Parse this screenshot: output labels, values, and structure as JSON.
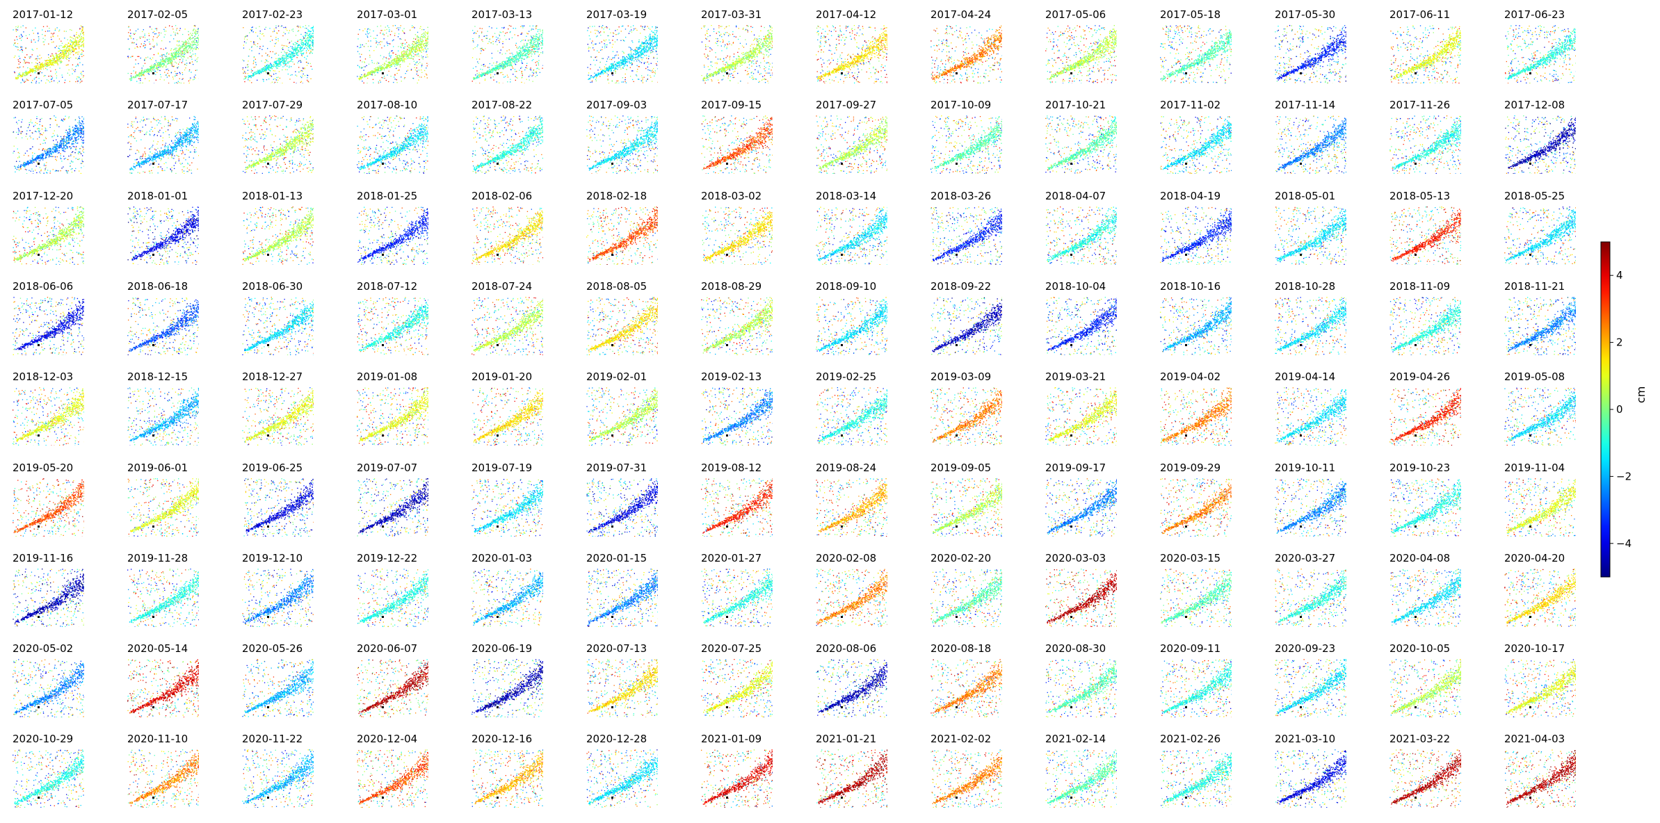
{
  "chart_data": {
    "type": "heatmap",
    "description_kind": "small-multiples",
    "layout": {
      "rows": 9,
      "cols": 14
    },
    "colormap": "jet",
    "colorbar": {
      "label": "cm",
      "vmin": -5,
      "vmax": 5,
      "ticks": [
        4,
        2,
        0,
        -2,
        -4
      ],
      "tick_labels": [
        "4",
        "2",
        "0",
        "−2",
        "−4"
      ]
    },
    "panels": [
      {
        "date": "2017-01-12",
        "main_value": 1.0
      },
      {
        "date": "2017-02-05",
        "main_value": 0.0
      },
      {
        "date": "2017-02-23",
        "main_value": -1.0
      },
      {
        "date": "2017-03-01",
        "main_value": 0.5
      },
      {
        "date": "2017-03-13",
        "main_value": -0.5
      },
      {
        "date": "2017-03-19",
        "main_value": -1.5
      },
      {
        "date": "2017-03-31",
        "main_value": 0.5
      },
      {
        "date": "2017-04-12",
        "main_value": 1.5
      },
      {
        "date": "2017-04-24",
        "main_value": 2.5
      },
      {
        "date": "2017-05-06",
        "main_value": 0.5
      },
      {
        "date": "2017-05-18",
        "main_value": -0.5
      },
      {
        "date": "2017-05-30",
        "main_value": -3.5
      },
      {
        "date": "2017-06-11",
        "main_value": 1.0
      },
      {
        "date": "2017-06-23",
        "main_value": -1.0
      },
      {
        "date": "2017-07-05",
        "main_value": -2.5
      },
      {
        "date": "2017-07-17",
        "main_value": -2.0
      },
      {
        "date": "2017-07-29",
        "main_value": 0.5
      },
      {
        "date": "2017-08-10",
        "main_value": -1.5
      },
      {
        "date": "2017-08-22",
        "main_value": -1.0
      },
      {
        "date": "2017-09-03",
        "main_value": -1.5
      },
      {
        "date": "2017-09-15",
        "main_value": 3.0
      },
      {
        "date": "2017-09-27",
        "main_value": 0.5
      },
      {
        "date": "2017-10-09",
        "main_value": -0.5
      },
      {
        "date": "2017-10-21",
        "main_value": -0.5
      },
      {
        "date": "2017-11-02",
        "main_value": -1.5
      },
      {
        "date": "2017-11-14",
        "main_value": -2.5
      },
      {
        "date": "2017-11-26",
        "main_value": -1.0
      },
      {
        "date": "2017-12-08",
        "main_value": -4.5
      },
      {
        "date": "2017-12-20",
        "main_value": 0.5
      },
      {
        "date": "2018-01-01",
        "main_value": -4.0
      },
      {
        "date": "2018-01-13",
        "main_value": 0.5
      },
      {
        "date": "2018-01-25",
        "main_value": -3.5
      },
      {
        "date": "2018-02-06",
        "main_value": 1.5
      },
      {
        "date": "2018-02-18",
        "main_value": 3.0
      },
      {
        "date": "2018-03-02",
        "main_value": 1.5
      },
      {
        "date": "2018-03-14",
        "main_value": -1.5
      },
      {
        "date": "2018-03-26",
        "main_value": -3.5
      },
      {
        "date": "2018-04-07",
        "main_value": -1.0
      },
      {
        "date": "2018-04-19",
        "main_value": -3.5
      },
      {
        "date": "2018-05-01",
        "main_value": -1.5
      },
      {
        "date": "2018-05-13",
        "main_value": 3.5
      },
      {
        "date": "2018-05-25",
        "main_value": -1.5
      },
      {
        "date": "2018-06-06",
        "main_value": -4.0
      },
      {
        "date": "2018-06-18",
        "main_value": -3.0
      },
      {
        "date": "2018-06-30",
        "main_value": -1.5
      },
      {
        "date": "2018-07-12",
        "main_value": -1.0
      },
      {
        "date": "2018-07-24",
        "main_value": 0.5
      },
      {
        "date": "2018-08-05",
        "main_value": 1.5
      },
      {
        "date": "2018-08-29",
        "main_value": 0.5
      },
      {
        "date": "2018-09-10",
        "main_value": -1.5
      },
      {
        "date": "2018-09-22",
        "main_value": -4.5
      },
      {
        "date": "2018-10-04",
        "main_value": -3.5
      },
      {
        "date": "2018-10-16",
        "main_value": -2.0
      },
      {
        "date": "2018-10-28",
        "main_value": -1.5
      },
      {
        "date": "2018-11-09",
        "main_value": -1.0
      },
      {
        "date": "2018-11-21",
        "main_value": -2.5
      },
      {
        "date": "2018-12-03",
        "main_value": 1.0
      },
      {
        "date": "2018-12-15",
        "main_value": -2.0
      },
      {
        "date": "2018-12-27",
        "main_value": 1.0
      },
      {
        "date": "2019-01-08",
        "main_value": 1.0
      },
      {
        "date": "2019-01-20",
        "main_value": 1.5
      },
      {
        "date": "2019-02-01",
        "main_value": 0.5
      },
      {
        "date": "2019-02-13",
        "main_value": -2.5
      },
      {
        "date": "2019-02-25",
        "main_value": -1.0
      },
      {
        "date": "2019-03-09",
        "main_value": 2.5
      },
      {
        "date": "2019-03-21",
        "main_value": 1.0
      },
      {
        "date": "2019-04-02",
        "main_value": 2.5
      },
      {
        "date": "2019-04-14",
        "main_value": -1.5
      },
      {
        "date": "2019-04-26",
        "main_value": 3.5
      },
      {
        "date": "2019-05-08",
        "main_value": -1.5
      },
      {
        "date": "2019-05-20",
        "main_value": 3.0
      },
      {
        "date": "2019-06-01",
        "main_value": 1.0
      },
      {
        "date": "2019-06-25",
        "main_value": -4.0
      },
      {
        "date": "2019-07-07",
        "main_value": -4.5
      },
      {
        "date": "2019-07-19",
        "main_value": -1.5
      },
      {
        "date": "2019-07-31",
        "main_value": -4.0
      },
      {
        "date": "2019-08-12",
        "main_value": 3.5
      },
      {
        "date": "2019-08-24",
        "main_value": 2.0
      },
      {
        "date": "2019-09-05",
        "main_value": 0.5
      },
      {
        "date": "2019-09-17",
        "main_value": -2.5
      },
      {
        "date": "2019-09-29",
        "main_value": 2.5
      },
      {
        "date": "2019-10-11",
        "main_value": -2.5
      },
      {
        "date": "2019-10-23",
        "main_value": -1.0
      },
      {
        "date": "2019-11-04",
        "main_value": 1.0
      },
      {
        "date": "2019-11-16",
        "main_value": -4.5
      },
      {
        "date": "2019-11-28",
        "main_value": -1.0
      },
      {
        "date": "2019-12-10",
        "main_value": -2.5
      },
      {
        "date": "2019-12-22",
        "main_value": -1.0
      },
      {
        "date": "2020-01-03",
        "main_value": -2.0
      },
      {
        "date": "2020-01-15",
        "main_value": -2.5
      },
      {
        "date": "2020-01-27",
        "main_value": -1.0
      },
      {
        "date": "2020-02-08",
        "main_value": 2.5
      },
      {
        "date": "2020-02-20",
        "main_value": -0.5
      },
      {
        "date": "2020-03-03",
        "main_value": 4.5
      },
      {
        "date": "2020-03-15",
        "main_value": -0.5
      },
      {
        "date": "2020-03-27",
        "main_value": -1.0
      },
      {
        "date": "2020-04-08",
        "main_value": -1.5
      },
      {
        "date": "2020-04-20",
        "main_value": 1.5
      },
      {
        "date": "2020-05-02",
        "main_value": -2.5
      },
      {
        "date": "2020-05-14",
        "main_value": 4.0
      },
      {
        "date": "2020-05-26",
        "main_value": -2.0
      },
      {
        "date": "2020-06-07",
        "main_value": 4.5
      },
      {
        "date": "2020-06-19",
        "main_value": -4.5
      },
      {
        "date": "2020-07-13",
        "main_value": 1.5
      },
      {
        "date": "2020-07-25",
        "main_value": 1.0
      },
      {
        "date": "2020-08-06",
        "main_value": -4.5
      },
      {
        "date": "2020-08-18",
        "main_value": 2.5
      },
      {
        "date": "2020-08-30",
        "main_value": -0.5
      },
      {
        "date": "2020-09-11",
        "main_value": -1.0
      },
      {
        "date": "2020-09-23",
        "main_value": -1.5
      },
      {
        "date": "2020-10-05",
        "main_value": 0.5
      },
      {
        "date": "2020-10-17",
        "main_value": 1.0
      },
      {
        "date": "2020-10-29",
        "main_value": -1.0
      },
      {
        "date": "2020-11-10",
        "main_value": 2.5
      },
      {
        "date": "2020-11-22",
        "main_value": -2.0
      },
      {
        "date": "2020-12-04",
        "main_value": 3.0
      },
      {
        "date": "2020-12-16",
        "main_value": 2.0
      },
      {
        "date": "2020-12-28",
        "main_value": -1.5
      },
      {
        "date": "2021-01-09",
        "main_value": 4.0
      },
      {
        "date": "2021-01-21",
        "main_value": 4.5
      },
      {
        "date": "2021-02-02",
        "main_value": 2.5
      },
      {
        "date": "2021-02-14",
        "main_value": -0.5
      },
      {
        "date": "2021-02-26",
        "main_value": -1.0
      },
      {
        "date": "2021-03-10",
        "main_value": -4.0
      },
      {
        "date": "2021-03-22",
        "main_value": 4.5
      },
      {
        "date": "2021-04-03",
        "main_value": 4.5
      }
    ]
  }
}
